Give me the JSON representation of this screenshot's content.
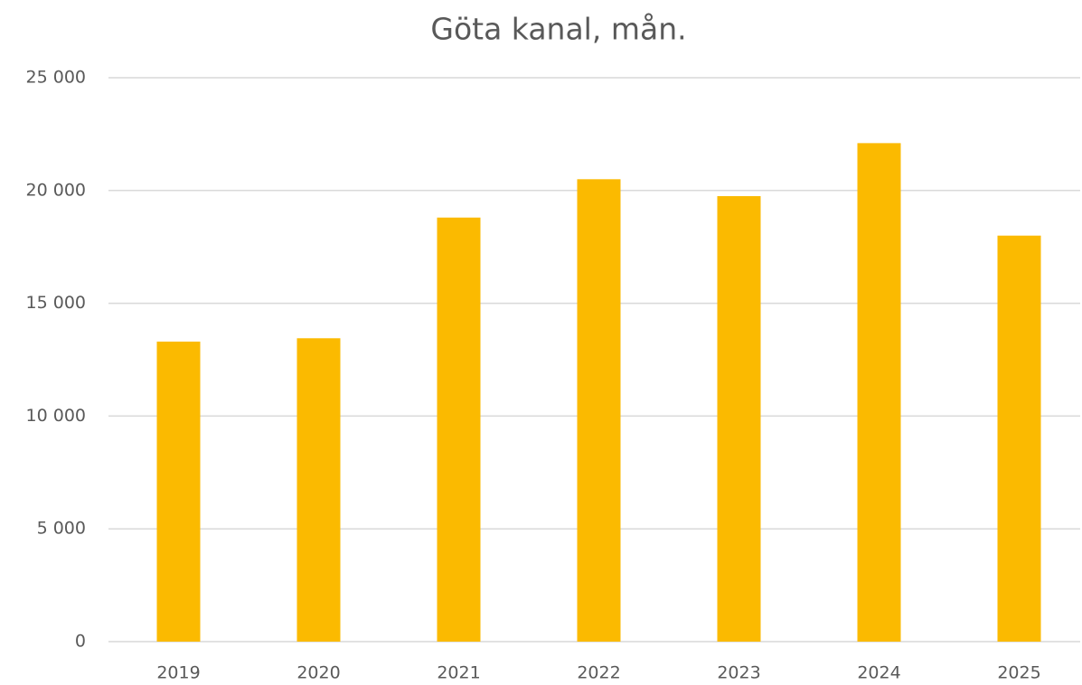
{
  "chart_data": {
    "type": "bar",
    "title": "Göta kanal, mån.",
    "categories": [
      "2019",
      "2020",
      "2021",
      "2022",
      "2023",
      "2024",
      "2025"
    ],
    "values": [
      13300,
      13450,
      18800,
      20500,
      19750,
      22100,
      18000
    ],
    "color": "#fbba00",
    "ylim": [
      0,
      25000
    ],
    "yticks": [
      0,
      {
        "value": 5000,
        "label": "5 000"
      },
      {
        "value": 10000,
        "label": "10 000"
      },
      {
        "value": 15000,
        "label": "15 000"
      },
      {
        "value": 20000,
        "label": "20 000"
      },
      {
        "value": 25000,
        "label": "25 000"
      }
    ],
    "grid": true
  }
}
